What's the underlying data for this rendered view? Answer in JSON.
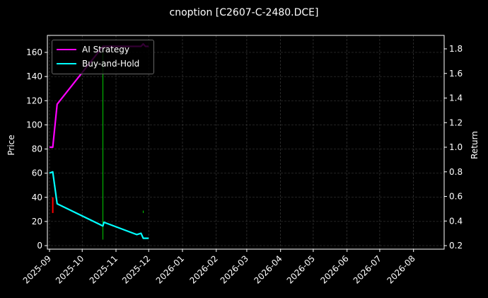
{
  "chart_data": {
    "type": "line",
    "title": "cnoption [C2607-C-2480.DCE]",
    "xlabel": "",
    "ylabel": "Price",
    "y2label": "Return",
    "ylim": [
      -2,
      174
    ],
    "y2lim": [
      0.18,
      1.9
    ],
    "yticks": [
      0,
      20,
      40,
      60,
      80,
      100,
      120,
      140,
      160
    ],
    "y2ticks": [
      0.2,
      0.4,
      0.6,
      0.8,
      1.0,
      1.2,
      1.4,
      1.6,
      1.8
    ],
    "xticks": [
      "2025-09",
      "2025-10",
      "2025-11",
      "2025-12",
      "2026-01",
      "2026-02",
      "2026-03",
      "2026-04",
      "2026-05",
      "2026-06",
      "2026-07",
      "2026-08"
    ],
    "grid": true,
    "legend_position": "upper left",
    "series": [
      {
        "name": "AI Strategy",
        "axis": "return",
        "color": "#ff00ff",
        "x": [
          "2025-09-01",
          "2025-09-04",
          "2025-09-08",
          "2025-10-20",
          "2025-10-21",
          "2025-11-24",
          "2025-11-26",
          "2025-11-28",
          "2025-12-01"
        ],
        "values": [
          1.0,
          1.0,
          1.35,
          1.82,
          1.82,
          1.82,
          1.84,
          1.82,
          1.82
        ]
      },
      {
        "name": "Buy-and-Hold",
        "axis": "return",
        "color": "#00ffff",
        "x": [
          "2025-09-01",
          "2025-09-04",
          "2025-09-08",
          "2025-10-20",
          "2025-10-21",
          "2025-11-20",
          "2025-11-24",
          "2025-11-26",
          "2025-12-01"
        ],
        "values": [
          0.79,
          0.8,
          0.54,
          0.36,
          0.39,
          0.29,
          0.3,
          0.26,
          0.26
        ]
      }
    ],
    "price_bars": [
      {
        "x": "2025-09-04",
        "low": 27,
        "high": 40,
        "color": "#ff0000"
      },
      {
        "x": "2025-10-20",
        "low": 5,
        "high": 160,
        "color": "#00cc00"
      },
      {
        "x": "2025-11-26",
        "low": 27,
        "high": 29,
        "color": "#00cc00"
      }
    ]
  }
}
